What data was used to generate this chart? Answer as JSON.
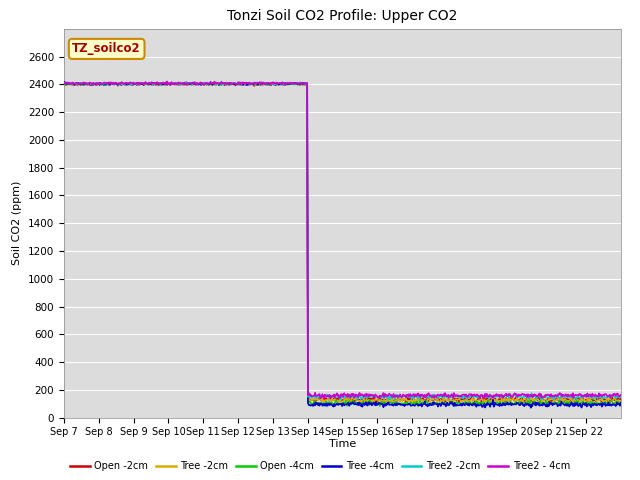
{
  "title": "Tonzi Soil CO2 Profile: Upper CO2",
  "ylabel": "Soil CO2 (ppm)",
  "xlabel": "Time",
  "ylim": [
    0,
    2800
  ],
  "yticks": [
    0,
    200,
    400,
    600,
    800,
    1000,
    1200,
    1400,
    1600,
    1800,
    2000,
    2200,
    2400,
    2600
  ],
  "xtick_labels": [
    "Sep 7",
    "Sep 8",
    "Sep 9",
    "Sep 10",
    "Sep 11",
    "Sep 12",
    "Sep 13",
    "Sep 14",
    "Sep 15",
    "Sep 16",
    "Sep 17",
    "Sep 18",
    "Sep 19",
    "Sep 20",
    "Sep 21",
    "Sep 22"
  ],
  "bg_color": "#dcdcdc",
  "legend_label": "TZ_soilco2",
  "series": [
    {
      "label": "Open -2cm",
      "color": "#cc0000",
      "lw": 1.0
    },
    {
      "label": "Tree -2cm",
      "color": "#ddaa00",
      "lw": 1.0
    },
    {
      "label": "Open -4cm",
      "color": "#00cc00",
      "lw": 1.0
    },
    {
      "label": "Tree -4cm",
      "color": "#0000cc",
      "lw": 1.2
    },
    {
      "label": "Tree2 -2cm",
      "color": "#00cccc",
      "lw": 1.0
    },
    {
      "label": "Tree2 - 4cm",
      "color": "#cc00cc",
      "lw": 1.2
    }
  ],
  "drop_day": 7,
  "pre_value": 2400,
  "post_values": [
    130,
    125,
    105,
    95,
    150,
    160
  ]
}
